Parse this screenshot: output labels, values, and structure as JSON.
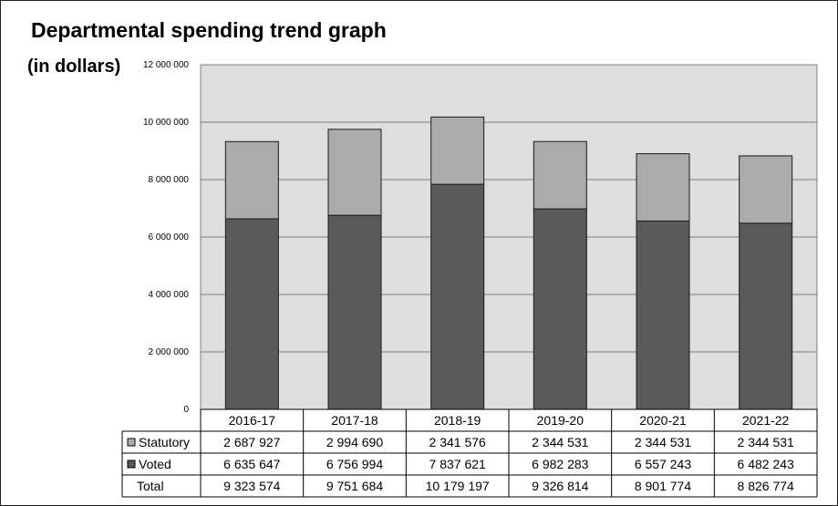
{
  "chart_data": {
    "type": "bar",
    "stacked": true,
    "title": "Departmental spending trend graph",
    "ylabel": "(in dollars)",
    "xlabel": "",
    "categories": [
      "2016-17",
      "2017-18",
      "2018-19",
      "2019-20",
      "2020-21",
      "2021-22"
    ],
    "series": [
      {
        "name": "Statutory",
        "color": "#ababab",
        "values": [
          2687927,
          2994690,
          2341576,
          2344531,
          2344531,
          2344531
        ],
        "labels": [
          "2 687 927",
          "2 994 690",
          "2 341 576",
          "2 344 531",
          "2 344 531",
          "2 344 531"
        ]
      },
      {
        "name": "Voted",
        "color": "#5a5a5a",
        "values": [
          6635647,
          6756994,
          7837621,
          6982283,
          6557243,
          6482243
        ],
        "labels": [
          "6 635 647",
          "6 756 994",
          "7 837 621",
          "6 982 283",
          "6 557 243",
          "6 482 243"
        ]
      }
    ],
    "totals": {
      "name": "Total",
      "values": [
        9323574,
        9751684,
        10179197,
        9326814,
        8901774,
        8826774
      ],
      "labels": [
        "9 323 574",
        "9 751 684",
        "10 179 197",
        "9 326 814",
        "8 901 774",
        "8 826 774"
      ]
    },
    "ylim": [
      0,
      12000000
    ],
    "yticks": [
      0,
      2000000,
      4000000,
      6000000,
      8000000,
      10000000,
      12000000
    ],
    "ytick_labels": [
      "0",
      "2 000 000",
      "4 000 000",
      "6 000 000",
      "8 000 000",
      "10 000 000",
      "12 000 000"
    ],
    "grid": true,
    "legend": "data-table",
    "plot_background": "#dedede"
  }
}
